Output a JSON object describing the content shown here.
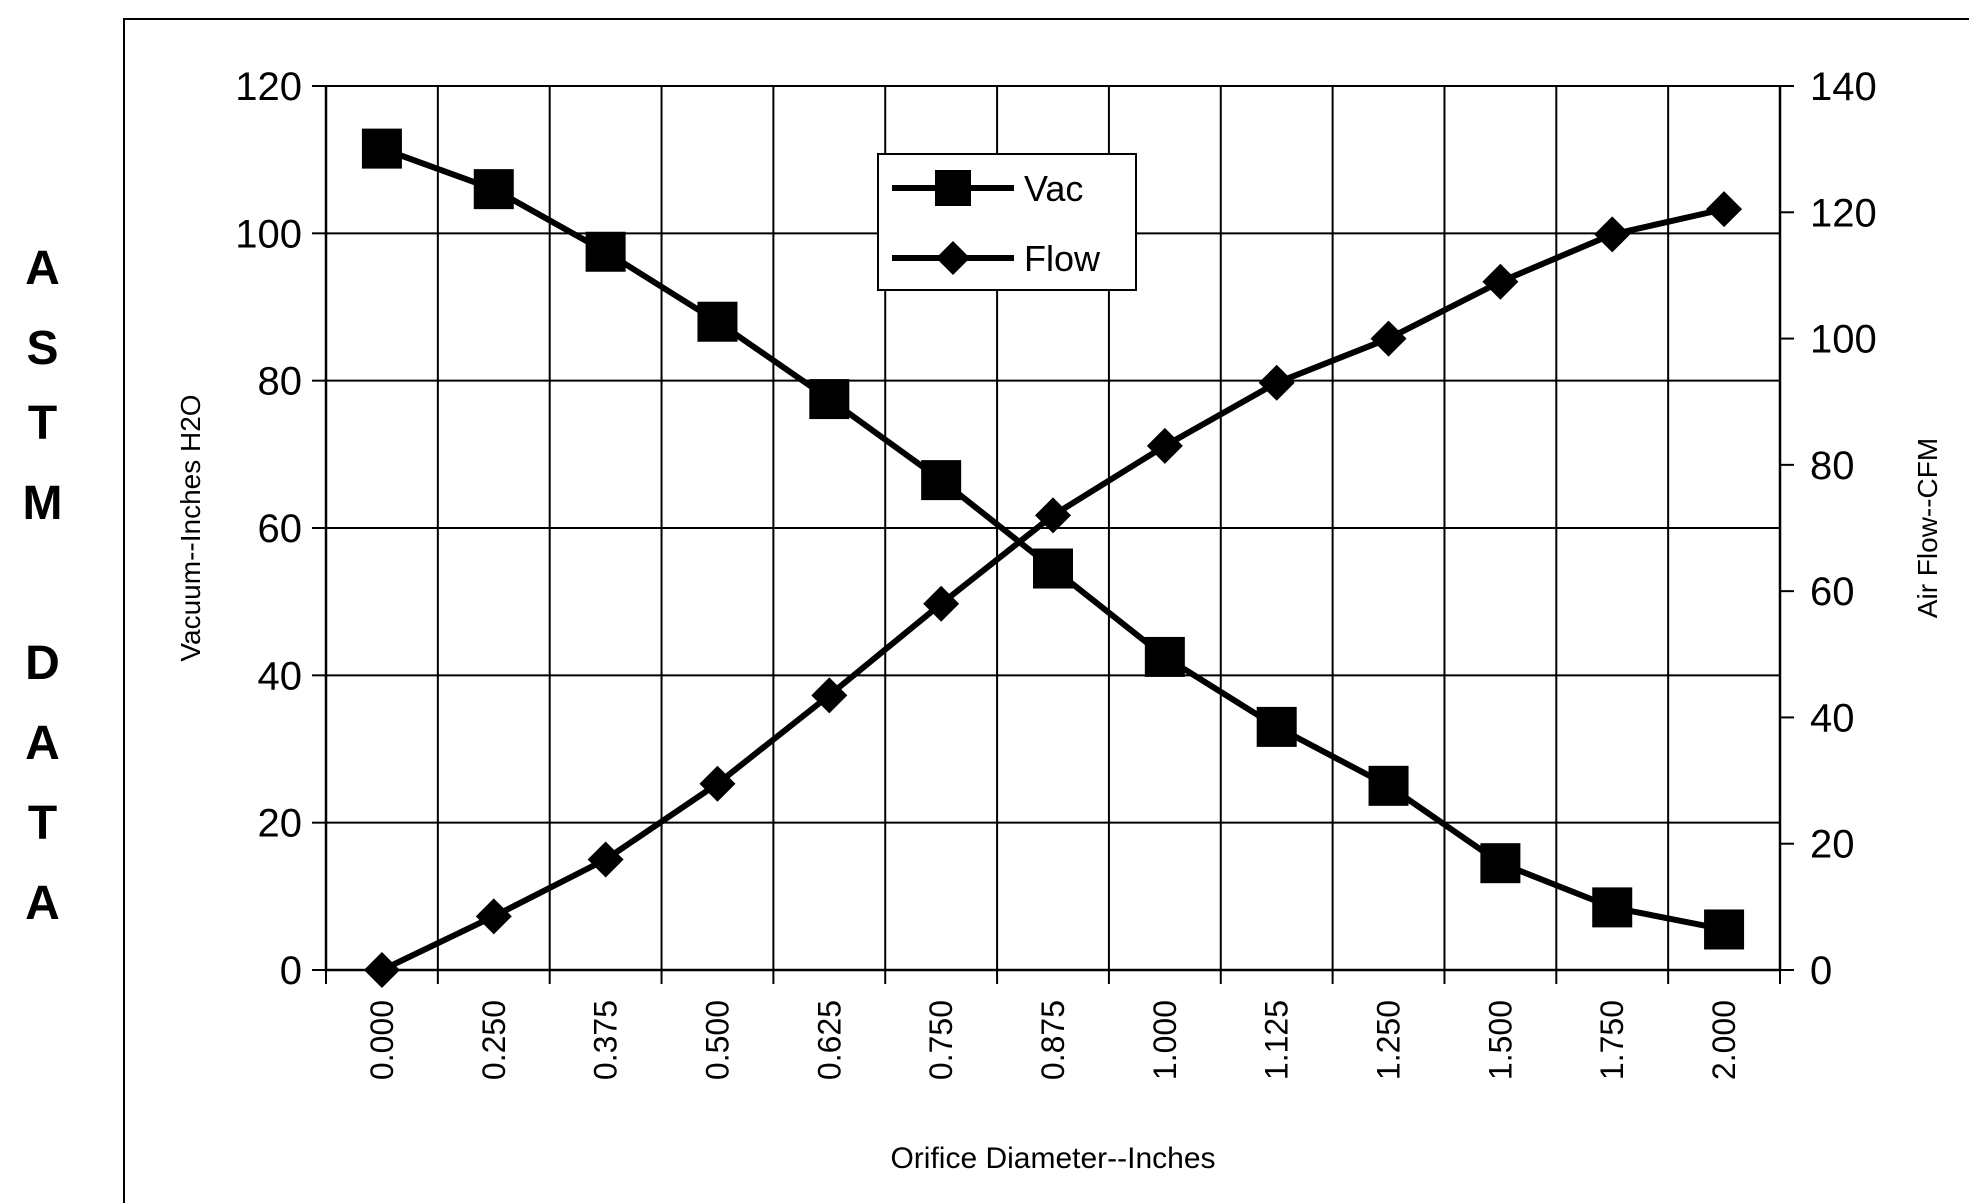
{
  "side_title": [
    "A",
    "S",
    "T",
    "M",
    "",
    "D",
    "A",
    "T",
    "A"
  ],
  "chart_data": {
    "type": "line",
    "categories": [
      "0.000",
      "0.250",
      "0.375",
      "0.500",
      "0.625",
      "0.750",
      "0.875",
      "1.000",
      "1.125",
      "1.250",
      "1.500",
      "1.750",
      "2.000"
    ],
    "xlabel": "Orifice Diameter--Inches",
    "ylabel_left": "Vacuum--Inches H2O",
    "ylabel_right": "Air Flow--CFM",
    "ylim_left": [
      0,
      120
    ],
    "ylim_right": [
      0,
      140
    ],
    "yticks_left": [
      0,
      20,
      40,
      60,
      80,
      100,
      120
    ],
    "yticks_right": [
      0,
      20,
      40,
      60,
      80,
      100,
      120,
      140
    ],
    "grid": true,
    "legend_position": "top-center",
    "series": [
      {
        "name": "Vac",
        "axis": "left",
        "marker": "square",
        "values": [
          111.5,
          106,
          97.5,
          88,
          77.5,
          66.5,
          54.5,
          42.5,
          33,
          25,
          14.5,
          8.5,
          5.5
        ]
      },
      {
        "name": "Flow",
        "axis": "right",
        "marker": "diamond",
        "values": [
          0,
          8.5,
          17.5,
          29.5,
          43.5,
          58,
          72,
          83,
          93,
          100,
          109,
          116.5,
          120.5
        ]
      }
    ]
  }
}
